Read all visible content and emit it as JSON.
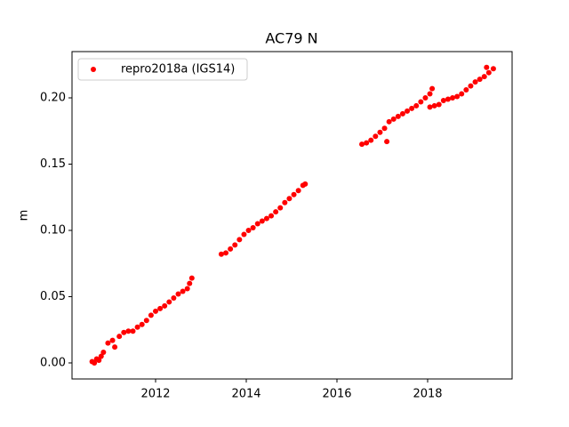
{
  "chart_data": {
    "type": "scatter",
    "title": "AC79 N",
    "y_label": "m",
    "x": [
      2010.6,
      2010.65,
      2010.7,
      2010.75,
      2010.8,
      2010.85,
      2010.95,
      2011.05,
      2011.1,
      2011.2,
      2011.3,
      2011.4,
      2011.5,
      2011.6,
      2011.7,
      2011.8,
      2011.9,
      2012.0,
      2012.1,
      2012.2,
      2012.3,
      2012.4,
      2012.5,
      2012.6,
      2012.7,
      2012.75,
      2012.8,
      2013.45,
      2013.55,
      2013.65,
      2013.75,
      2013.85,
      2013.95,
      2014.05,
      2014.15,
      2014.25,
      2014.35,
      2014.45,
      2014.55,
      2014.65,
      2014.75,
      2014.85,
      2014.95,
      2015.05,
      2015.15,
      2015.25,
      2015.3,
      2016.55,
      2016.65,
      2016.75,
      2016.85,
      2016.95,
      2017.05,
      2017.1,
      2017.15,
      2017.25,
      2017.35,
      2017.45,
      2017.55,
      2017.65,
      2017.75,
      2017.85,
      2017.95,
      2018.05,
      2018.1,
      2018.05,
      2018.15,
      2018.25,
      2018.35,
      2018.45,
      2018.55,
      2018.65,
      2018.75,
      2018.85,
      2018.95,
      2019.05,
      2019.15,
      2019.25,
      2019.35,
      2019.45,
      2019.3
    ],
    "series": [
      {
        "name": "repro2018a (IGS14)",
        "color": "#ff0000",
        "values": [
          0.001,
          0.0,
          0.003,
          0.002,
          0.005,
          0.008,
          0.015,
          0.017,
          0.012,
          0.02,
          0.023,
          0.024,
          0.024,
          0.027,
          0.029,
          0.032,
          0.036,
          0.039,
          0.041,
          0.043,
          0.046,
          0.049,
          0.052,
          0.054,
          0.056,
          0.06,
          0.064,
          0.082,
          0.083,
          0.086,
          0.089,
          0.093,
          0.097,
          0.1,
          0.102,
          0.105,
          0.107,
          0.109,
          0.111,
          0.114,
          0.117,
          0.121,
          0.124,
          0.127,
          0.13,
          0.134,
          0.135,
          0.165,
          0.166,
          0.168,
          0.171,
          0.174,
          0.177,
          0.167,
          0.182,
          0.184,
          0.186,
          0.188,
          0.19,
          0.192,
          0.194,
          0.197,
          0.2,
          0.203,
          0.207,
          0.193,
          0.194,
          0.195,
          0.198,
          0.199,
          0.2,
          0.201,
          0.203,
          0.206,
          0.209,
          0.212,
          0.214,
          0.216,
          0.219,
          0.222,
          0.223
        ]
      }
    ],
    "xlim": [
      2010.157,
      2019.863
    ],
    "ylim": [
      -0.0121,
      0.2349
    ],
    "xticks": [
      2012,
      2014,
      2016,
      2018
    ],
    "yticks": [
      {
        "value": 0,
        "label": "0.00"
      },
      {
        "value": 0.05,
        "label": "0.05"
      },
      {
        "value": 0.1,
        "label": "0.10"
      },
      {
        "value": 0.15,
        "label": "0.15"
      },
      {
        "value": 0.2,
        "label": "0.20"
      }
    ],
    "legend": "upper left"
  }
}
